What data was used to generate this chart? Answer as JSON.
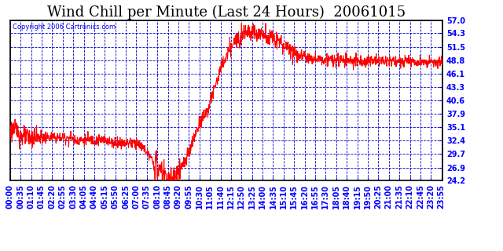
{
  "title": "Wind Chill per Minute (Last 24 Hours)  20061015",
  "copyright": "Copyright 2006 Cartronics.com",
  "yticks": [
    24.2,
    26.9,
    29.7,
    32.4,
    35.1,
    37.9,
    40.6,
    43.3,
    46.1,
    48.8,
    51.5,
    54.3,
    57.0
  ],
  "ymin": 24.2,
  "ymax": 57.0,
  "line_color": "red",
  "bg_color": "white",
  "grid_color": "#0000cc",
  "title_color": "black",
  "axis_color": "blue",
  "tick_label_color": "blue",
  "border_color": "black",
  "copyright_color": "blue",
  "title_fontsize": 13,
  "label_fontsize": 7
}
